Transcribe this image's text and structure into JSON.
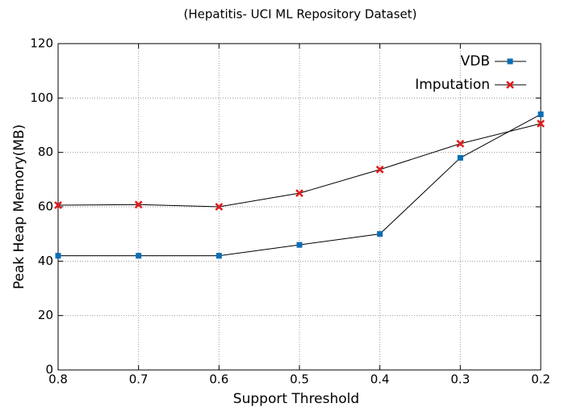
{
  "chart_data": {
    "type": "line",
    "title": "(Hepatitis- UCI ML Repository Dataset)",
    "x_label": "Support Threshold",
    "y_label": "Peak Heap Memory(MB)",
    "categories": [
      "0.8",
      "0.7",
      "0.6",
      "0.5",
      "0.4",
      "0.3",
      "0.2"
    ],
    "series": [
      {
        "name": "VDB",
        "color": "#0a6eb4",
        "marker": "square",
        "values": [
          42,
          42,
          42,
          46,
          50,
          78,
          94
        ]
      },
      {
        "name": "Imputation",
        "color": "#e41a1c",
        "marker": "x",
        "values": [
          60.6,
          60.8,
          60,
          65,
          73.7,
          83.2,
          90.6
        ]
      }
    ],
    "ylim": [
      0,
      120
    ],
    "yticks": [
      0,
      20,
      40,
      60,
      80,
      100,
      120
    ],
    "grid": true,
    "legend": "upper right"
  }
}
